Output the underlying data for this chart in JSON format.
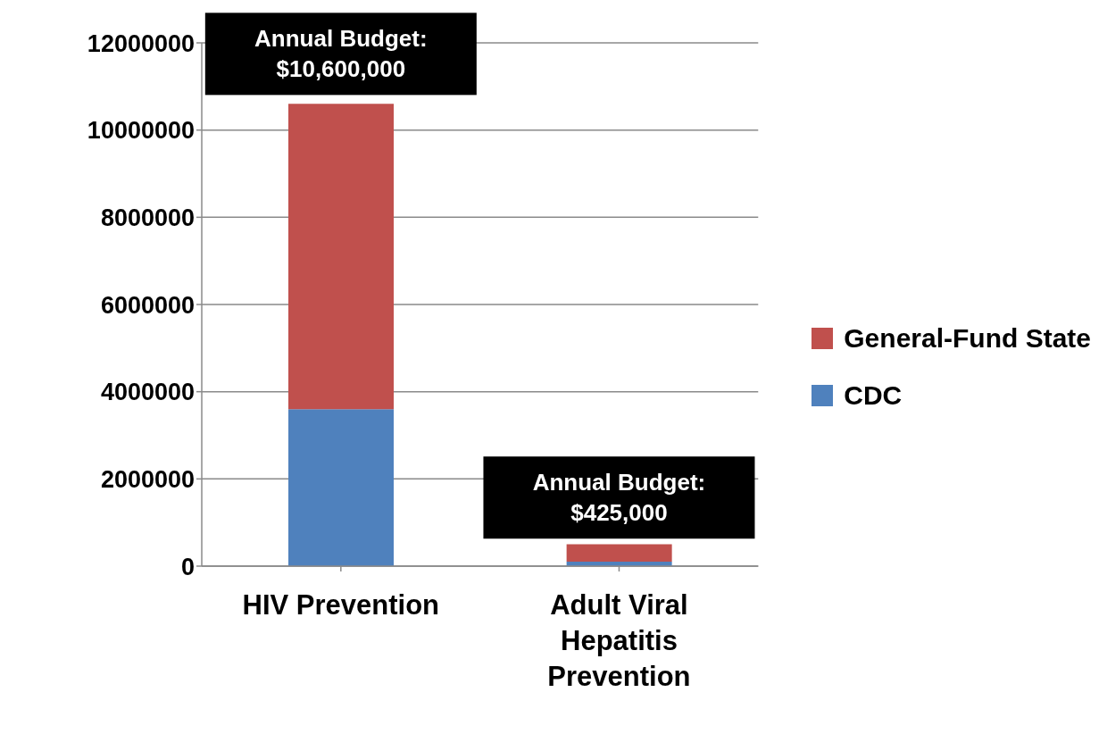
{
  "chart_data": {
    "type": "bar",
    "stacked": true,
    "categories": [
      "HIV Prevention",
      "Adult Viral Hepatitis Prevention"
    ],
    "series": [
      {
        "name": "CDC",
        "color": "#4f81bd",
        "values": [
          3600000,
          100000
        ]
      },
      {
        "name": "General-Fund State",
        "color": "#c0504d",
        "values": [
          7000000,
          400000
        ]
      }
    ],
    "ylim": [
      0,
      12000000
    ],
    "yticks": [
      0,
      2000000,
      4000000,
      6000000,
      8000000,
      10000000,
      12000000
    ],
    "grid": "y",
    "legend": "right",
    "annotations": [
      {
        "text": "Annual Budget:\n$10,600,000",
        "x": "HIV Prevention",
        "y": 10600000
      },
      {
        "text": "Annual Budget:\n$425,000",
        "x": "Adult Viral Hepatitis Prevention",
        "y": 425000
      }
    ]
  }
}
